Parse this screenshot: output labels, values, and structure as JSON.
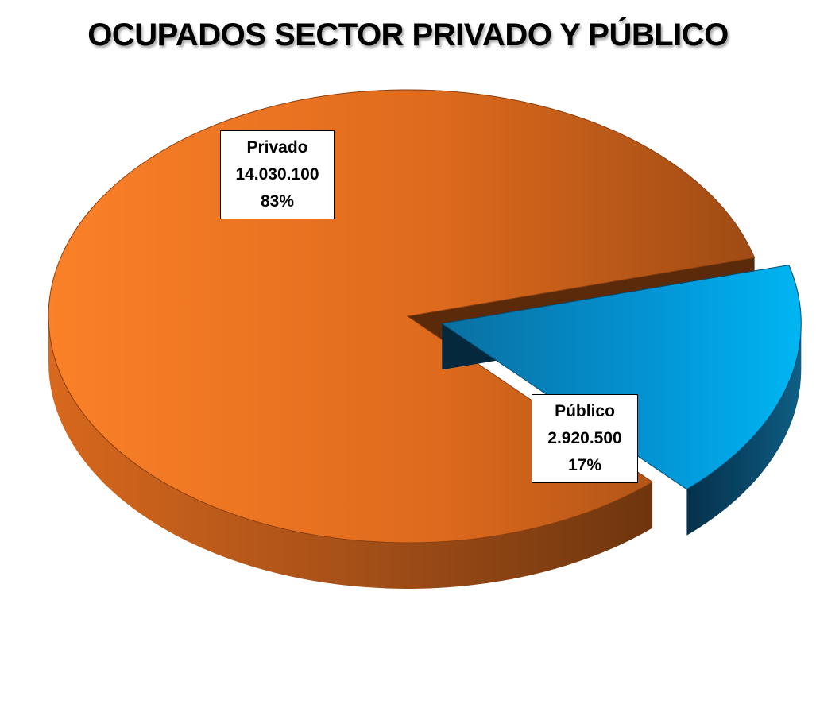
{
  "chart_data": {
    "type": "pie",
    "title": "OCUPADOS SECTOR PRIVADO Y PÚBLICO",
    "slices": [
      {
        "label": "Privado",
        "value": 14030100,
        "value_text": "14.030.100",
        "percent_text": "83%",
        "color": "#F47A20",
        "exploded": false
      },
      {
        "label": "Público",
        "value": 2920500,
        "value_text": "2.920.500",
        "percent_text": "17%",
        "color": "#00AEEF",
        "exploded": true
      }
    ],
    "legend": "none",
    "style": "3d-exploded"
  }
}
